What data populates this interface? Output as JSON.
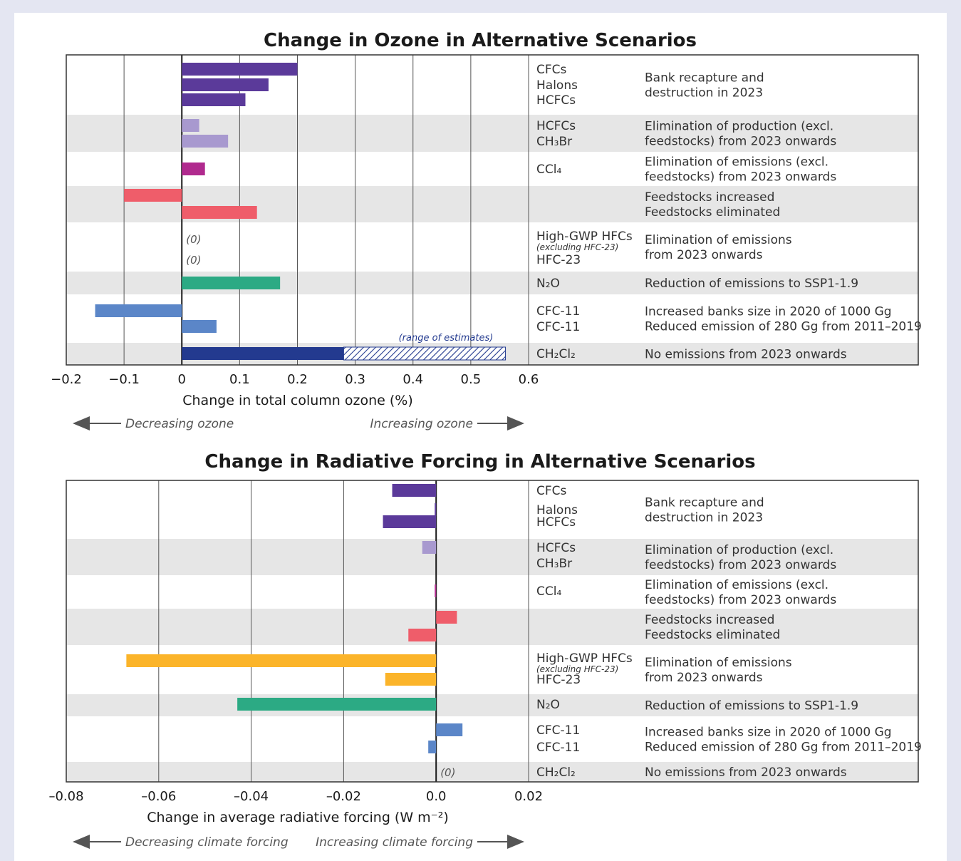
{
  "chart_data": [
    {
      "type": "bar",
      "title": "Change in Ozone in Alternative Scenarios",
      "xlabel": "Change in total column ozone (%)",
      "xlim": [
        -0.2,
        0.6
      ],
      "xticks": [
        "−0.2",
        "−0.1",
        "0",
        "0.1",
        "0.2",
        "0.3",
        "0.4",
        "0.5",
        "0.6"
      ],
      "grid": true,
      "arrow_left": "Decreasing ozone",
      "arrow_right": "Increasing ozone",
      "range_note": "(range of estimates)",
      "groups": [
        {
          "shaded": false,
          "description": [
            "Bank recapture and",
            "destruction in 2023"
          ],
          "bars": [
            {
              "label": "CFCs",
              "value": 0.2,
              "color": "#5b3a9a"
            },
            {
              "label": "Halons",
              "value": 0.15,
              "color": "#5b3a9a"
            },
            {
              "label": "HCFCs",
              "value": 0.11,
              "color": "#5b3a9a"
            }
          ]
        },
        {
          "shaded": true,
          "description": [
            "Elimination of  production (excl.",
            "feedstocks) from 2023 onwards"
          ],
          "bars": [
            {
              "label": "HCFCs",
              "value": 0.03,
              "color": "#a899cf"
            },
            {
              "label": "CH₃Br",
              "value": 0.08,
              "color": "#a899cf"
            }
          ]
        },
        {
          "shaded": false,
          "description": [
            "Elimination of emissions (excl.",
            "feedstocks) from 2023 onwards"
          ],
          "bars": [
            {
              "label": "CCl₄",
              "value": 0.04,
              "color": "#b02a8e"
            }
          ]
        },
        {
          "shaded": true,
          "description": [
            "Feedstocks increased",
            "Feedstocks eliminated"
          ],
          "bars": [
            {
              "label": "",
              "value": -0.1,
              "color": "#ef5d6a"
            },
            {
              "label": "",
              "value": 0.13,
              "color": "#ef5d6a"
            }
          ]
        },
        {
          "shaded": false,
          "description": [
            "Elimination of emissions",
            "from 2023 onwards"
          ],
          "bars": [
            {
              "label": "High-GWP HFCs",
              "sublabel": "(excluding HFC-23)",
              "value": 0,
              "zero_label": "(0)",
              "color": "#fbb42a"
            },
            {
              "label": "HFC-23",
              "value": 0,
              "zero_label": "(0)",
              "color": "#fbb42a"
            }
          ]
        },
        {
          "shaded": true,
          "description": [
            "Reduction of emissions to SSP1-1.9"
          ],
          "bars": [
            {
              "label": "N₂O",
              "value": 0.17,
              "color": "#2caa84"
            }
          ]
        },
        {
          "shaded": false,
          "description": [
            "Increased banks size in 2020 of 1000 Gg",
            "Reduced emission of 280 Gg from 2011–2019"
          ],
          "bars": [
            {
              "label": "CFC-11",
              "value": -0.15,
              "color": "#5b86c8"
            },
            {
              "label": "CFC-11",
              "value": 0.06,
              "color": "#5b86c8"
            }
          ]
        },
        {
          "shaded": true,
          "description": [
            "No emissions from 2023 onwards"
          ],
          "bars": [
            {
              "label": "CH₂Cl₂",
              "value": 0.28,
              "range_to": 0.56,
              "color": "#233a8f"
            }
          ]
        }
      ]
    },
    {
      "type": "bar",
      "title": "Change in Radiative Forcing in Alternative Scenarios",
      "xlabel": "Change in average radiative forcing (W m⁻²)",
      "xlim": [
        -0.08,
        0.02
      ],
      "xticks": [
        "–0.08",
        "–0.06",
        "–0.04",
        "–0.02",
        "0.0",
        "0.02"
      ],
      "grid": true,
      "arrow_left": "Decreasing climate forcing",
      "arrow_right": "Increasing climate forcing",
      "groups": [
        {
          "shaded": false,
          "description": [
            "Bank recapture and",
            "destruction in 2023"
          ],
          "bars": [
            {
              "label": "CFCs",
              "value": -0.0095,
              "color": "#5b3a9a"
            },
            {
              "label": "Halons",
              "value": -0.0003,
              "color": "#5b3a9a"
            },
            {
              "label": "HCFCs",
              "value": -0.0115,
              "color": "#5b3a9a"
            }
          ]
        },
        {
          "shaded": true,
          "description": [
            "Elimination of production (excl.",
            "feedstocks) from 2023 onwards"
          ],
          "bars": [
            {
              "label": "HCFCs",
              "value": -0.003,
              "color": "#a899cf"
            },
            {
              "label": "CH₃Br",
              "value": 0,
              "color": "#a899cf"
            }
          ]
        },
        {
          "shaded": false,
          "description": [
            "Elimination of emissions (excl.",
            "feedstocks) from 2023 onwards"
          ],
          "bars": [
            {
              "label": "CCl₄",
              "value": -0.0003,
              "color": "#b02a8e"
            }
          ]
        },
        {
          "shaded": true,
          "description": [
            "Feedstocks increased",
            "Feedstocks eliminated"
          ],
          "bars": [
            {
              "label": "",
              "value": 0.0045,
              "color": "#ef5d6a"
            },
            {
              "label": "",
              "value": -0.006,
              "color": "#ef5d6a"
            }
          ]
        },
        {
          "shaded": false,
          "description": [
            "Elimination of emissions",
            "from 2023 onwards"
          ],
          "bars": [
            {
              "label": "High-GWP HFCs",
              "sublabel": "(excluding HFC-23)",
              "value": -0.067,
              "color": "#fbb42a"
            },
            {
              "label": "HFC-23",
              "value": -0.011,
              "color": "#fbb42a"
            }
          ]
        },
        {
          "shaded": true,
          "description": [
            "Reduction of emissions to SSP1-1.9"
          ],
          "bars": [
            {
              "label": "N₂O",
              "value": -0.043,
              "color": "#2caa84"
            }
          ]
        },
        {
          "shaded": false,
          "description": [
            "Increased banks size in 2020 of 1000 Gg",
            "Reduced emission of 280 Gg from 2011–2019"
          ],
          "bars": [
            {
              "label": "CFC-11",
              "value": 0.0057,
              "color": "#5b86c8"
            },
            {
              "label": "CFC-11",
              "value": -0.0017,
              "color": "#5b86c8"
            }
          ]
        },
        {
          "shaded": true,
          "description": [
            "No emissions from 2023 onwards"
          ],
          "bars": [
            {
              "label": "CH₂Cl₂",
              "value": 0,
              "zero_label": "(0)",
              "color": "#233a8f"
            }
          ]
        }
      ]
    }
  ]
}
